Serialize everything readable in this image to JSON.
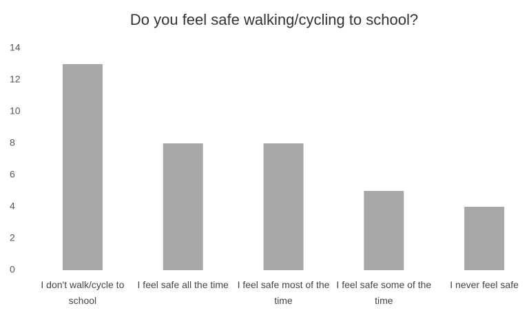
{
  "chart_data": {
    "type": "bar",
    "title": "Do you feel safe walking/cycling to school?",
    "categories": [
      "I don't walk/cycle to school",
      "I feel safe all the time",
      "I feel safe most of the time",
      "I feel safe some of the time",
      "I never feel safe"
    ],
    "values": [
      13,
      8,
      8,
      5,
      4
    ],
    "color": "#a8a8a8",
    "ylim": [
      0,
      14
    ],
    "yticks": [
      0,
      2,
      4,
      6,
      8,
      10,
      12,
      14
    ],
    "grid": false
  }
}
